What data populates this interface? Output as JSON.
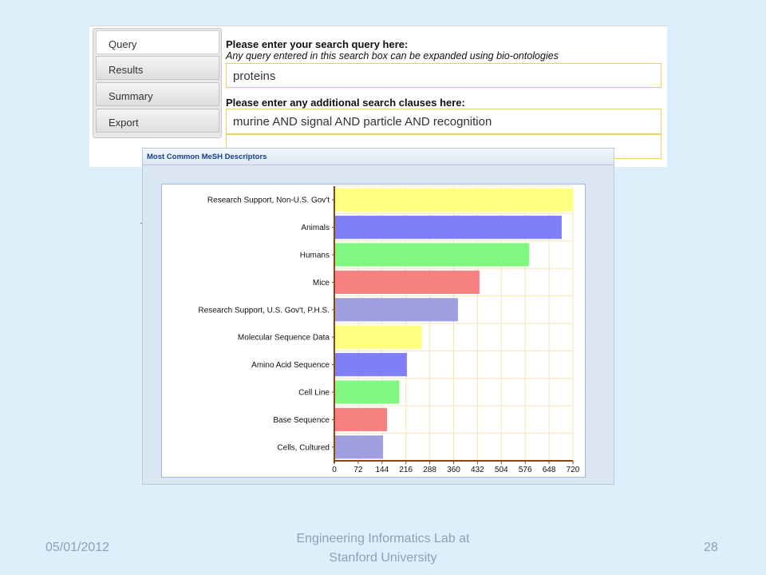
{
  "tabs": [
    {
      "label": "Query",
      "active": true
    },
    {
      "label": "Results",
      "active": false
    },
    {
      "label": "Summary",
      "active": false
    },
    {
      "label": "Export",
      "active": false
    }
  ],
  "query": {
    "heading": "Please enter your search query here:",
    "note": "Any query entered in this search box can be expanded using bio-ontologies",
    "value": "proteins",
    "clauses_heading": "Please enter any additional search clauses here:",
    "clause_1": "murine AND signal AND particle AND recognition",
    "clause_2": ""
  },
  "chart_panel": {
    "title": "Most Common MeSH Descriptors"
  },
  "chart_data": {
    "type": "bar",
    "orientation": "horizontal",
    "categories": [
      "Research Support, Non-U.S. Gov't",
      "Animals",
      "Humans",
      "Mice",
      "Research Support, U.S. Gov't, P.H.S.",
      "Molecular Sequence Data",
      "Amino Acid Sequence",
      "Cell Line",
      "Base Sequence",
      "Cells, Cultured"
    ],
    "values": [
      720,
      685,
      587,
      437,
      372,
      263,
      218,
      195,
      158,
      146
    ],
    "colors": [
      "#ffff80",
      "#7f7ff7",
      "#80f780",
      "#f78080",
      "#9f9fdf",
      "#ffff80",
      "#7f7ff7",
      "#80f780",
      "#f78080",
      "#9f9fdf"
    ],
    "xticks": [
      0,
      72,
      144,
      216,
      288,
      360,
      432,
      504,
      576,
      648,
      720
    ],
    "xlim": [
      0,
      720
    ],
    "grid": true,
    "grid_color": "#f5e6b8",
    "axis_color": "#8b4513"
  },
  "footer": {
    "date": "05/01/2012",
    "center_line_1": "Engineering Informatics Lab at",
    "center_line_2": "Stanford University",
    "page": "28"
  }
}
